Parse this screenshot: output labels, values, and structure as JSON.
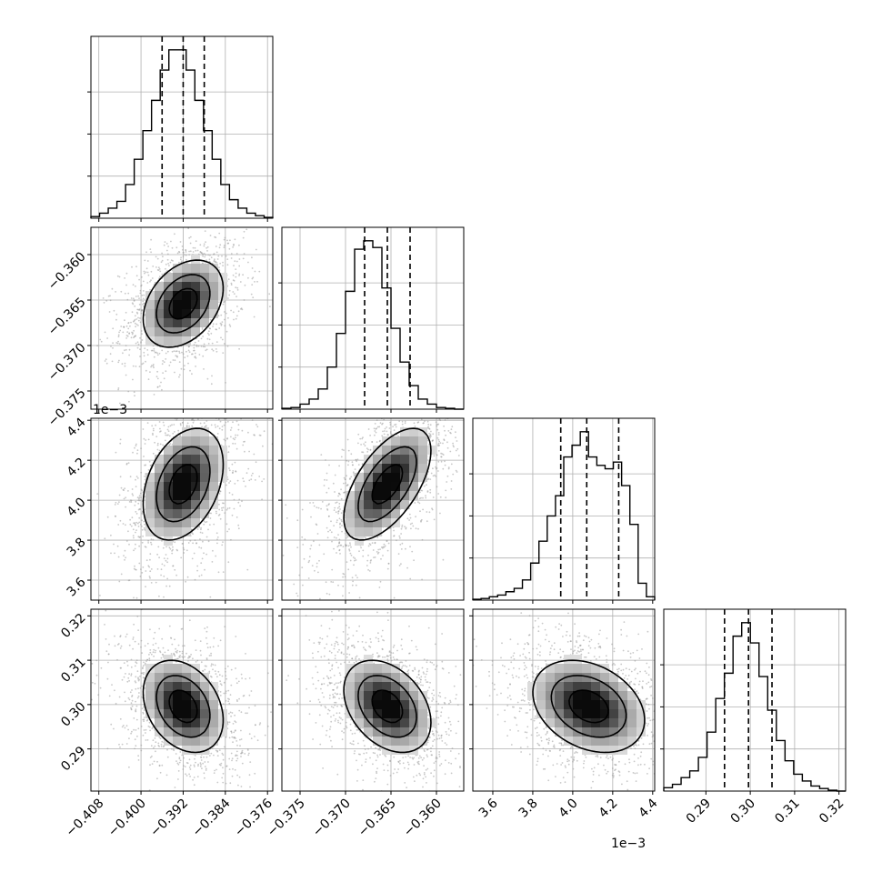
{
  "chart_data": {
    "type": "corner",
    "parameters": [
      {
        "range": [
          -0.4095,
          -0.375
        ],
        "ticks": [
          -0.408,
          -0.4,
          -0.392,
          -0.384,
          -0.376
        ],
        "tick_labels": [
          "−0.408",
          "−0.400",
          "−0.392",
          "−0.384",
          "−0.376"
        ],
        "offset_label": "",
        "mean": -0.392,
        "sigma": 0.0038,
        "quantiles": [
          -0.396,
          -0.392,
          -0.388
        ]
      },
      {
        "range": [
          -0.377,
          -0.357
        ],
        "ticks": [
          -0.375,
          -0.37,
          -0.365,
          -0.36
        ],
        "tick_labels": [
          "−0.375",
          "−0.370",
          "−0.365",
          "−0.360"
        ],
        "offset_label": "",
        "mean": -0.3654,
        "sigma": 0.0024,
        "quantiles": [
          -0.3679,
          -0.3654,
          -0.3629
        ]
      },
      {
        "range": [
          3.5,
          4.41
        ],
        "ticks": [
          3.6,
          3.8,
          4.0,
          4.2,
          4.4
        ],
        "tick_labels": [
          "3.6",
          "3.8",
          "4.0",
          "4.2",
          "4.4"
        ],
        "offset_label": "1e−3",
        "mean": 4.08,
        "sigma": 0.14,
        "quantiles": [
          3.94,
          4.07,
          4.23
        ]
      },
      {
        "range": [
          0.2805,
          0.3215
        ],
        "ticks": [
          0.29,
          0.3,
          0.31,
          0.32
        ],
        "tick_labels": [
          "0.29",
          "0.30",
          "0.31",
          "0.32"
        ],
        "offset_label": "",
        "mean": 0.2996,
        "sigma": 0.0052,
        "quantiles": [
          0.2942,
          0.2996,
          0.3049
        ]
      }
    ],
    "histograms": [
      [
        0.01,
        0.03,
        0.06,
        0.1,
        0.2,
        0.35,
        0.52,
        0.7,
        0.88,
        1.0,
        1.0,
        0.88,
        0.7,
        0.52,
        0.35,
        0.2,
        0.11,
        0.06,
        0.03,
        0.015,
        0.005
      ],
      [
        0.005,
        0.01,
        0.03,
        0.06,
        0.12,
        0.25,
        0.45,
        0.7,
        0.95,
        1.0,
        0.96,
        0.72,
        0.48,
        0.28,
        0.14,
        0.06,
        0.03,
        0.01,
        0.005,
        0.0
      ],
      [
        0.005,
        0.01,
        0.02,
        0.03,
        0.05,
        0.07,
        0.12,
        0.22,
        0.35,
        0.5,
        0.62,
        0.85,
        0.92,
        1.0,
        0.85,
        0.8,
        0.78,
        0.82,
        0.68,
        0.45,
        0.1,
        0.02
      ],
      [
        0.02,
        0.04,
        0.08,
        0.12,
        0.2,
        0.35,
        0.55,
        0.7,
        0.92,
        1.0,
        0.88,
        0.68,
        0.48,
        0.3,
        0.18,
        0.1,
        0.06,
        0.03,
        0.015,
        0.005,
        0.0
      ]
    ],
    "correlations": {
      "1-0": 0.35,
      "2-0": 0.35,
      "2-1": 0.6,
      "3-0": -0.3,
      "3-1": -0.35,
      "3-2": -0.3
    },
    "grid": true,
    "contour_levels": 3
  }
}
